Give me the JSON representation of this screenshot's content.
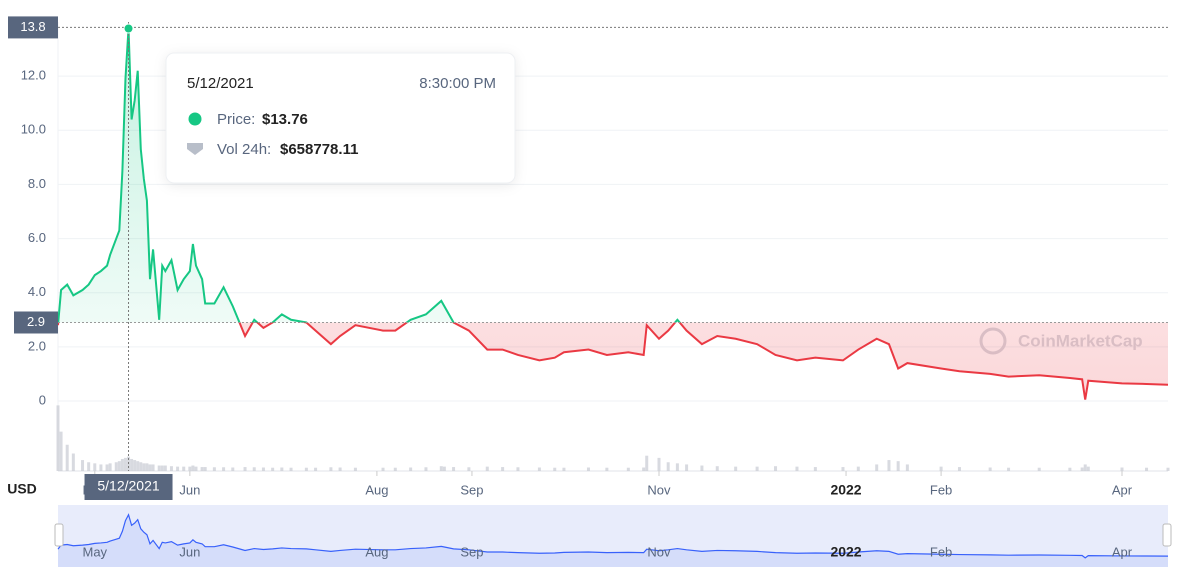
{
  "chart_data": {
    "type": "line",
    "currency": "USD",
    "watermark": "CoinMarketCap",
    "xlim": [
      "2021-04-19",
      "2022-04-16"
    ],
    "xticks": [
      {
        "value": "2021-05-01",
        "label": "May"
      },
      {
        "value": "2021-06-01",
        "label": "Jun"
      },
      {
        "value": "2021-08-01",
        "label": "Aug"
      },
      {
        "value": "2021-09-01",
        "label": "Sep"
      },
      {
        "value": "2021-11-01",
        "label": "Nov"
      },
      {
        "value": "2022-01-01",
        "label": "2022"
      },
      {
        "value": "2022-02-01",
        "label": "Feb"
      },
      {
        "value": "2022-04-01",
        "label": "Apr"
      }
    ],
    "ylim": [
      0,
      14
    ],
    "yticks": [
      0,
      {
        "value": 2,
        "label": "2.0"
      },
      {
        "value": 4,
        "label": "4.0"
      },
      {
        "value": 6,
        "label": "6.0"
      },
      {
        "value": 8,
        "label": "8.0"
      },
      {
        "value": 10,
        "label": "10.0"
      },
      {
        "value": 12,
        "label": "12.0"
      }
    ],
    "baseline": 2.9,
    "up_color": "#16c784",
    "down_color": "#ea3943",
    "y2lim": [
      0,
      3200000
    ],
    "grid": true,
    "x": [
      "2021-04-19",
      "2021-04-20",
      "2021-04-22",
      "2021-04-24",
      "2021-04-27",
      "2021-04-29",
      "2021-05-01",
      "2021-05-03",
      "2021-05-05",
      "2021-05-06",
      "2021-05-08",
      "2021-05-09",
      "2021-05-10",
      "2021-05-11",
      "2021-05-12",
      "2021-05-13",
      "2021-05-14",
      "2021-05-15",
      "2021-05-16",
      "2021-05-17",
      "2021-05-18",
      "2021-05-19",
      "2021-05-20",
      "2021-05-22",
      "2021-05-23",
      "2021-05-24",
      "2021-05-26",
      "2021-05-28",
      "2021-05-30",
      "2021-06-01",
      "2021-06-02",
      "2021-06-03",
      "2021-06-05",
      "2021-06-06",
      "2021-06-09",
      "2021-06-12",
      "2021-06-15",
      "2021-06-19",
      "2021-06-22",
      "2021-06-25",
      "2021-06-28",
      "2021-07-01",
      "2021-07-04",
      "2021-07-09",
      "2021-07-12",
      "2021-07-17",
      "2021-07-20",
      "2021-07-25",
      "2021-08-03",
      "2021-08-07",
      "2021-08-12",
      "2021-08-17",
      "2021-08-22",
      "2021-08-23",
      "2021-08-26",
      "2021-08-31",
      "2021-09-06",
      "2021-09-11",
      "2021-09-16",
      "2021-09-23",
      "2021-09-28",
      "2021-10-01",
      "2021-10-09",
      "2021-10-15",
      "2021-10-22",
      "2021-10-27",
      "2021-10-28",
      "2021-11-01",
      "2021-11-04",
      "2021-11-07",
      "2021-11-10",
      "2021-11-15",
      "2021-11-20",
      "2021-11-26",
      "2021-12-03",
      "2021-12-09",
      "2021-12-16",
      "2021-12-22",
      "2021-12-31",
      "2022-01-05",
      "2022-01-11",
      "2022-01-15",
      "2022-01-18",
      "2022-01-21",
      "2022-02-01",
      "2022-02-07",
      "2022-02-17",
      "2022-02-23",
      "2022-03-05",
      "2022-03-15",
      "2022-03-19",
      "2022-03-20",
      "2022-03-21",
      "2022-04-01",
      "2022-04-09",
      "2022-04-16"
    ],
    "series": [
      {
        "name": "Price",
        "color": "#16c784",
        "values": [
          2.8,
          4.1,
          4.3,
          3.9,
          4.1,
          4.3,
          4.65,
          4.8,
          5.0,
          5.4,
          6.0,
          6.3,
          8.5,
          11.9,
          13.76,
          10.4,
          11.1,
          12.2,
          9.3,
          8.2,
          7.4,
          4.5,
          5.6,
          3.0,
          5.0,
          4.8,
          5.2,
          4.1,
          4.5,
          4.8,
          5.8,
          5.0,
          4.5,
          3.6,
          3.6,
          4.2,
          3.5,
          2.4,
          3.0,
          2.7,
          2.9,
          3.2,
          3.0,
          2.9,
          2.6,
          2.1,
          2.4,
          2.8,
          2.6,
          2.6,
          3.0,
          3.2,
          3.7,
          3.5,
          2.9,
          2.6,
          1.9,
          1.9,
          1.7,
          1.5,
          1.6,
          1.8,
          1.9,
          1.7,
          1.8,
          1.7,
          2.8,
          2.3,
          2.6,
          3.0,
          2.6,
          2.1,
          2.4,
          2.3,
          2.1,
          1.7,
          1.5,
          1.6,
          1.5,
          1.9,
          2.3,
          2.1,
          1.2,
          1.4,
          1.2,
          1.1,
          1.0,
          0.9,
          0.95,
          0.85,
          0.8,
          0.05,
          0.75,
          0.65,
          0.63,
          0.6
        ]
      },
      {
        "name": "Vol 24h",
        "color": "#c7cbd3",
        "axis": "y2",
        "values": [
          3000000,
          1800000,
          1200000,
          800000,
          500000,
          400000,
          350000,
          300000,
          300000,
          350000,
          400000,
          450000,
          550000,
          600000,
          658778.11,
          550000,
          500000,
          450000,
          400000,
          350000,
          350000,
          300000,
          300000,
          250000,
          250000,
          250000,
          220000,
          200000,
          200000,
          200000,
          250000,
          200000,
          180000,
          180000,
          170000,
          170000,
          160000,
          180000,
          170000,
          160000,
          150000,
          160000,
          150000,
          150000,
          150000,
          170000,
          160000,
          150000,
          150000,
          150000,
          160000,
          170000,
          220000,
          200000,
          180000,
          170000,
          200000,
          180000,
          170000,
          160000,
          150000,
          150000,
          160000,
          150000,
          150000,
          160000,
          700000,
          600000,
          400000,
          350000,
          300000,
          250000,
          220000,
          200000,
          200000,
          220000,
          200000,
          180000,
          180000,
          200000,
          300000,
          500000,
          450000,
          300000,
          200000,
          180000,
          160000,
          150000,
          150000,
          150000,
          160000,
          300000,
          200000,
          160000,
          150000,
          150000
        ]
      }
    ],
    "tooltip": {
      "date": "5/12/2021",
      "time": "8:30:00 PM",
      "price_label": "Price:",
      "price": "$13.76",
      "vol_label": "Vol 24h:",
      "vol": "$658778.11"
    },
    "crosshair": {
      "x": "2021-05-12",
      "value": 13.8
    }
  }
}
